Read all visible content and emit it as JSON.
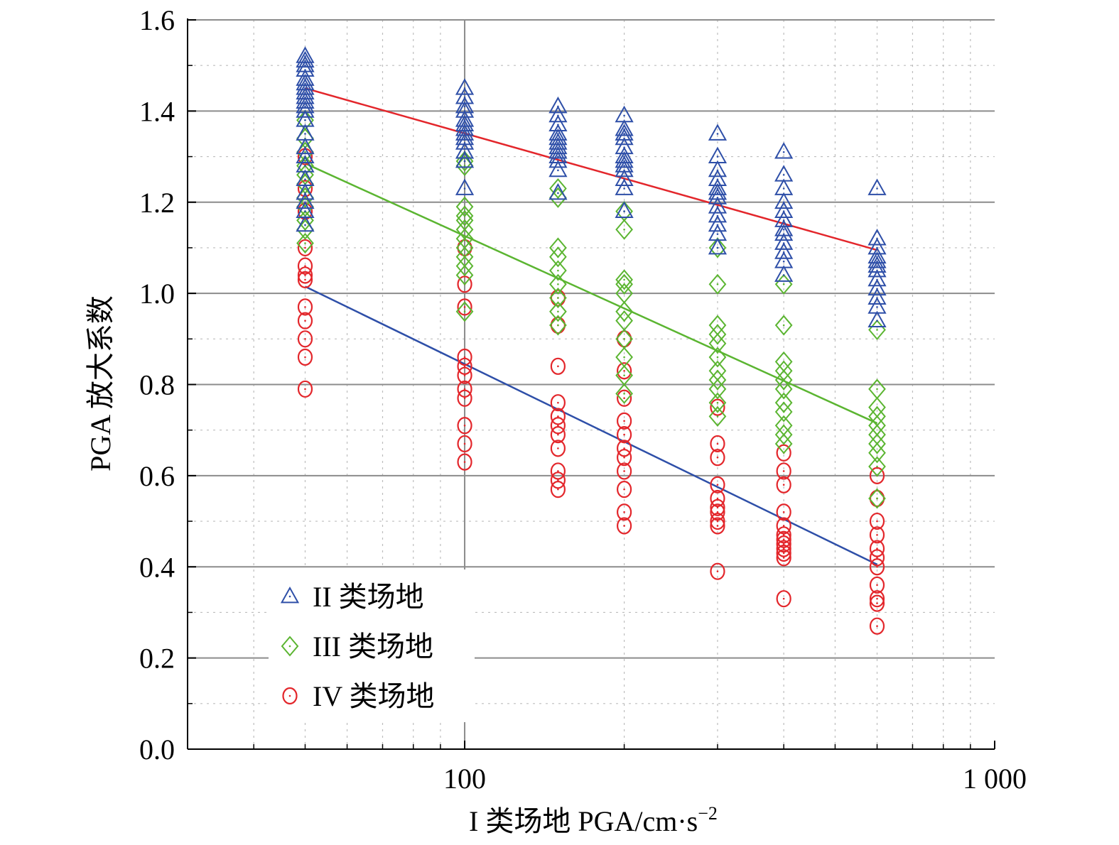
{
  "chart_data": {
    "type": "scatter",
    "title": "",
    "xlabel": "I 类场地 PGA/cm·s",
    "xlabel_sup": "−2",
    "ylabel": "PGA 放大系数",
    "xscale": "log",
    "xlim": [
      30,
      1000
    ],
    "ylim": [
      0.0,
      1.6
    ],
    "x_ticks": [
      100,
      1000
    ],
    "x_tick_labels": [
      "100",
      "1 000"
    ],
    "y_ticks": [
      0.0,
      0.2,
      0.4,
      0.6,
      0.8,
      1.0,
      1.2,
      1.4,
      1.6
    ],
    "y_tick_labels": [
      "0.0",
      "0.2",
      "0.4",
      "0.6",
      "0.8",
      "1.0",
      "1.2",
      "1.4",
      "1.6"
    ],
    "grid": true,
    "legend_position": "bottom-left",
    "series": [
      {
        "name": "II 类场地",
        "marker": "triangle",
        "color": "#2E4FA8",
        "points": [
          [
            50,
            1.52
          ],
          [
            50,
            1.51
          ],
          [
            50,
            1.5
          ],
          [
            50,
            1.49
          ],
          [
            50,
            1.47
          ],
          [
            50,
            1.46
          ],
          [
            50,
            1.45
          ],
          [
            50,
            1.44
          ],
          [
            50,
            1.43
          ],
          [
            50,
            1.42
          ],
          [
            50,
            1.41
          ],
          [
            50,
            1.4
          ],
          [
            50,
            1.38
          ],
          [
            50,
            1.35
          ],
          [
            50,
            1.32
          ],
          [
            50,
            1.3
          ],
          [
            50,
            1.28
          ],
          [
            50,
            1.25
          ],
          [
            50,
            1.22
          ],
          [
            50,
            1.2
          ],
          [
            50,
            1.18
          ],
          [
            50,
            1.15
          ],
          [
            100,
            1.45
          ],
          [
            100,
            1.43
          ],
          [
            100,
            1.41
          ],
          [
            100,
            1.4
          ],
          [
            100,
            1.38
          ],
          [
            100,
            1.37
          ],
          [
            100,
            1.36
          ],
          [
            100,
            1.35
          ],
          [
            100,
            1.34
          ],
          [
            100,
            1.33
          ],
          [
            100,
            1.31
          ],
          [
            100,
            1.29
          ],
          [
            100,
            1.23
          ],
          [
            150,
            1.41
          ],
          [
            150,
            1.39
          ],
          [
            150,
            1.37
          ],
          [
            150,
            1.35
          ],
          [
            150,
            1.34
          ],
          [
            150,
            1.33
          ],
          [
            150,
            1.32
          ],
          [
            150,
            1.31
          ],
          [
            150,
            1.3
          ],
          [
            150,
            1.29
          ],
          [
            150,
            1.27
          ],
          [
            150,
            1.22
          ],
          [
            200,
            1.39
          ],
          [
            200,
            1.36
          ],
          [
            200,
            1.35
          ],
          [
            200,
            1.34
          ],
          [
            200,
            1.32
          ],
          [
            200,
            1.3
          ],
          [
            200,
            1.29
          ],
          [
            200,
            1.28
          ],
          [
            200,
            1.27
          ],
          [
            200,
            1.25
          ],
          [
            200,
            1.23
          ],
          [
            200,
            1.18
          ],
          [
            300,
            1.35
          ],
          [
            300,
            1.3
          ],
          [
            300,
            1.27
          ],
          [
            300,
            1.25
          ],
          [
            300,
            1.23
          ],
          [
            300,
            1.22
          ],
          [
            300,
            1.21
          ],
          [
            300,
            1.19
          ],
          [
            300,
            1.17
          ],
          [
            300,
            1.15
          ],
          [
            300,
            1.13
          ],
          [
            300,
            1.1
          ],
          [
            400,
            1.31
          ],
          [
            400,
            1.26
          ],
          [
            400,
            1.23
          ],
          [
            400,
            1.2
          ],
          [
            400,
            1.18
          ],
          [
            400,
            1.16
          ],
          [
            400,
            1.14
          ],
          [
            400,
            1.13
          ],
          [
            400,
            1.11
          ],
          [
            400,
            1.09
          ],
          [
            400,
            1.07
          ],
          [
            400,
            1.04
          ],
          [
            600,
            1.23
          ],
          [
            600,
            1.12
          ],
          [
            600,
            1.1
          ],
          [
            600,
            1.08
          ],
          [
            600,
            1.07
          ],
          [
            600,
            1.06
          ],
          [
            600,
            1.05
          ],
          [
            600,
            1.03
          ],
          [
            600,
            1.01
          ],
          [
            600,
            0.99
          ],
          [
            600,
            0.97
          ],
          [
            600,
            0.94
          ]
        ]
      },
      {
        "name": "III 类场地",
        "marker": "diamond",
        "color": "#5BB531",
        "points": [
          [
            50,
            1.38
          ],
          [
            50,
            1.34
          ],
          [
            50,
            1.31
          ],
          [
            50,
            1.28
          ],
          [
            50,
            1.26
          ],
          [
            50,
            1.24
          ],
          [
            50,
            1.21
          ],
          [
            50,
            1.19
          ],
          [
            50,
            1.16
          ],
          [
            50,
            1.14
          ],
          [
            50,
            1.11
          ],
          [
            100,
            1.29
          ],
          [
            100,
            1.28
          ],
          [
            100,
            1.19
          ],
          [
            100,
            1.17
          ],
          [
            100,
            1.16
          ],
          [
            100,
            1.14
          ],
          [
            100,
            1.12
          ],
          [
            100,
            1.1
          ],
          [
            100,
            1.08
          ],
          [
            100,
            1.06
          ],
          [
            100,
            1.04
          ],
          [
            100,
            0.96
          ],
          [
            150,
            1.23
          ],
          [
            150,
            1.21
          ],
          [
            150,
            1.1
          ],
          [
            150,
            1.08
          ],
          [
            150,
            1.05
          ],
          [
            150,
            1.02
          ],
          [
            150,
            0.99
          ],
          [
            150,
            0.96
          ],
          [
            150,
            0.93
          ],
          [
            200,
            1.18
          ],
          [
            200,
            1.14
          ],
          [
            200,
            1.03
          ],
          [
            200,
            1.02
          ],
          [
            200,
            1.0
          ],
          [
            200,
            0.96
          ],
          [
            200,
            0.94
          ],
          [
            200,
            0.9
          ],
          [
            200,
            0.86
          ],
          [
            200,
            0.82
          ],
          [
            200,
            0.78
          ],
          [
            300,
            1.1
          ],
          [
            300,
            1.02
          ],
          [
            300,
            0.93
          ],
          [
            300,
            0.91
          ],
          [
            300,
            0.89
          ],
          [
            300,
            0.86
          ],
          [
            300,
            0.83
          ],
          [
            300,
            0.81
          ],
          [
            300,
            0.79
          ],
          [
            300,
            0.76
          ],
          [
            300,
            0.73
          ],
          [
            400,
            1.02
          ],
          [
            400,
            0.93
          ],
          [
            400,
            0.85
          ],
          [
            400,
            0.83
          ],
          [
            400,
            0.81
          ],
          [
            400,
            0.79
          ],
          [
            400,
            0.76
          ],
          [
            400,
            0.74
          ],
          [
            400,
            0.71
          ],
          [
            400,
            0.69
          ],
          [
            400,
            0.67
          ],
          [
            600,
            0.92
          ],
          [
            600,
            0.79
          ],
          [
            600,
            0.75
          ],
          [
            600,
            0.73
          ],
          [
            600,
            0.71
          ],
          [
            600,
            0.69
          ],
          [
            600,
            0.67
          ],
          [
            600,
            0.65
          ],
          [
            600,
            0.62
          ],
          [
            600,
            0.55
          ]
        ]
      },
      {
        "name": "IV 类场地",
        "marker": "circle",
        "color": "#E3262B",
        "points": [
          [
            50,
            1.3
          ],
          [
            50,
            1.23
          ],
          [
            50,
            1.18
          ],
          [
            50,
            1.1
          ],
          [
            50,
            1.06
          ],
          [
            50,
            1.04
          ],
          [
            50,
            1.03
          ],
          [
            50,
            0.97
          ],
          [
            50,
            0.94
          ],
          [
            50,
            0.9
          ],
          [
            50,
            0.86
          ],
          [
            50,
            0.79
          ],
          [
            100,
            1.1
          ],
          [
            100,
            1.02
          ],
          [
            100,
            0.97
          ],
          [
            100,
            0.86
          ],
          [
            100,
            0.84
          ],
          [
            100,
            0.82
          ],
          [
            100,
            0.79
          ],
          [
            100,
            0.77
          ],
          [
            100,
            0.71
          ],
          [
            100,
            0.67
          ],
          [
            100,
            0.63
          ],
          [
            150,
            0.99
          ],
          [
            150,
            0.93
          ],
          [
            150,
            0.84
          ],
          [
            150,
            0.76
          ],
          [
            150,
            0.73
          ],
          [
            150,
            0.71
          ],
          [
            150,
            0.69
          ],
          [
            150,
            0.66
          ],
          [
            150,
            0.61
          ],
          [
            150,
            0.59
          ],
          [
            150,
            0.57
          ],
          [
            200,
            0.9
          ],
          [
            200,
            0.83
          ],
          [
            200,
            0.77
          ],
          [
            200,
            0.72
          ],
          [
            200,
            0.69
          ],
          [
            200,
            0.66
          ],
          [
            200,
            0.64
          ],
          [
            200,
            0.61
          ],
          [
            200,
            0.57
          ],
          [
            200,
            0.52
          ],
          [
            200,
            0.49
          ],
          [
            300,
            0.75
          ],
          [
            300,
            0.67
          ],
          [
            300,
            0.64
          ],
          [
            300,
            0.58
          ],
          [
            300,
            0.55
          ],
          [
            300,
            0.53
          ],
          [
            300,
            0.52
          ],
          [
            300,
            0.5
          ],
          [
            300,
            0.49
          ],
          [
            300,
            0.39
          ],
          [
            400,
            0.65
          ],
          [
            400,
            0.61
          ],
          [
            400,
            0.58
          ],
          [
            400,
            0.52
          ],
          [
            400,
            0.49
          ],
          [
            400,
            0.47
          ],
          [
            400,
            0.46
          ],
          [
            400,
            0.45
          ],
          [
            400,
            0.44
          ],
          [
            400,
            0.43
          ],
          [
            400,
            0.42
          ],
          [
            400,
            0.33
          ],
          [
            600,
            0.6
          ],
          [
            600,
            0.55
          ],
          [
            600,
            0.5
          ],
          [
            600,
            0.47
          ],
          [
            600,
            0.44
          ],
          [
            600,
            0.42
          ],
          [
            600,
            0.4
          ],
          [
            600,
            0.36
          ],
          [
            600,
            0.33
          ],
          [
            600,
            0.32
          ],
          [
            600,
            0.27
          ]
        ]
      }
    ],
    "fit_lines": [
      {
        "color": "#E3262B",
        "points": [
          [
            50,
            1.45
          ],
          [
            600,
            1.095
          ]
        ]
      },
      {
        "color": "#5BB531",
        "points": [
          [
            50,
            1.285
          ],
          [
            600,
            0.715
          ]
        ]
      },
      {
        "color": "#2E4FA8",
        "points": [
          [
            50,
            1.015
          ],
          [
            600,
            0.405
          ]
        ]
      }
    ]
  }
}
